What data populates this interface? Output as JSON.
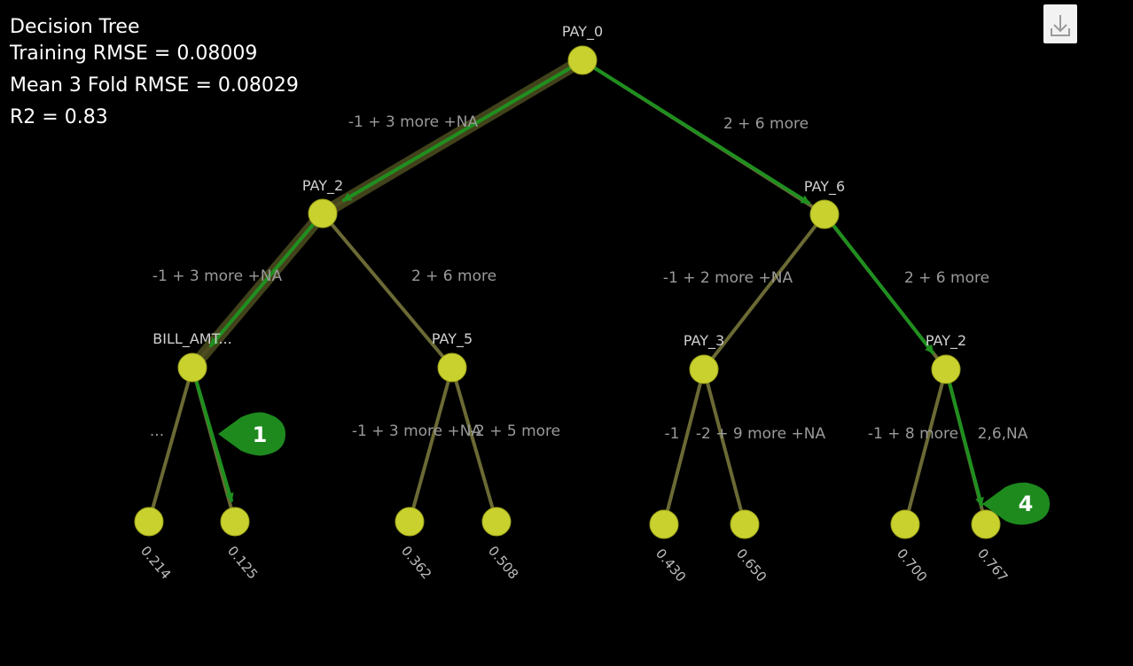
{
  "info": {
    "title": "Decision Tree",
    "training_rmse": "Training RMSE = 0.08009",
    "mean_fold_rmse": "Mean 3 Fold RMSE = 0.08029",
    "r2": "R2 = 0.83"
  },
  "toolbar": {
    "download_icon": "download-icon"
  },
  "colors": {
    "background": "#000000",
    "node": "#c8d12e",
    "branch": "#6b6a35",
    "highlight_path": "#1f8f1f",
    "callout": "#1e8a1e"
  },
  "tree": {
    "nodes": {
      "root": {
        "label": "PAY_0"
      },
      "l": {
        "label": "PAY_2"
      },
      "r": {
        "label": "PAY_6"
      },
      "ll": {
        "label": "BILL_AMT..."
      },
      "lr": {
        "label": "PAY_5"
      },
      "rl": {
        "label": "PAY_3"
      },
      "rr": {
        "label": "PAY_2"
      }
    },
    "edges": {
      "root_l": "-1 + 3 more +NA",
      "root_r": "2 + 6 more",
      "l_ll": "-1 + 3 more +NA",
      "l_lr": "2 + 6 more",
      "r_rl": "-1 + 2 more +NA",
      "r_rr": "2 + 6 more",
      "ll_a": "...",
      "lr_a": "-1 + 3 more +NA",
      "lr_b": "-2 + 5 more",
      "rl_a": "-1",
      "rl_b": "-2 + 9 more +NA",
      "rr_a": "-1 + 8 more",
      "rr_b": "2,6,NA"
    },
    "leaves": {
      "lla": "0.214",
      "llb": "0.125",
      "lra": "0.362",
      "lrb": "0.508",
      "rla": "0.430",
      "rlb": "0.650",
      "rra": "0.700",
      "rrb": "0.767"
    }
  },
  "callouts": {
    "c1": "1",
    "c4": "4"
  }
}
